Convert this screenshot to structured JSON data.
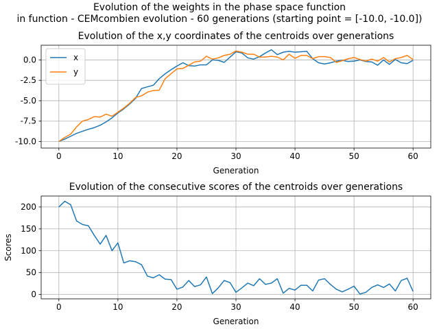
{
  "figure": {
    "title_line1": "Evolution of the weights in the phase space  function",
    "title_line2": "in function - CEMcombien evolution - 60 generations (starting point = [-10.0, -10.0])"
  },
  "chart_data": [
    {
      "type": "line",
      "title": "Evolution of the x,y coordinates of the centroids over generations",
      "xlabel": "Generation",
      "ylabel": "",
      "xlim": [
        -3,
        63
      ],
      "ylim": [
        -10.8,
        1.8
      ],
      "xticks": [
        0,
        10,
        20,
        30,
        40,
        50,
        60
      ],
      "yticks": [
        -10.0,
        -7.5,
        -5.0,
        -2.5,
        0.0,
        2.5
      ],
      "grid": true,
      "legend": "top-left",
      "x": [
        0,
        1,
        2,
        3,
        4,
        5,
        6,
        7,
        8,
        9,
        10,
        11,
        12,
        13,
        14,
        15,
        16,
        17,
        18,
        19,
        20,
        21,
        22,
        23,
        24,
        25,
        26,
        27,
        28,
        29,
        30,
        31,
        32,
        33,
        34,
        35,
        36,
        37,
        38,
        39,
        40,
        41,
        42,
        43,
        44,
        45,
        46,
        47,
        48,
        49,
        50,
        51,
        52,
        53,
        54,
        55,
        56,
        57,
        58,
        59,
        60
      ],
      "series": [
        {
          "name": "x",
          "color": "#1f77b4",
          "values": [
            -10.0,
            -9.7,
            -9.35,
            -9.0,
            -8.75,
            -8.5,
            -8.3,
            -8.0,
            -7.6,
            -7.1,
            -6.5,
            -6.0,
            -5.4,
            -4.7,
            -3.5,
            -3.3,
            -3.1,
            -2.3,
            -1.7,
            -1.2,
            -0.75,
            -0.35,
            -0.7,
            -0.75,
            -0.6,
            -0.6,
            0.0,
            -0.05,
            -0.3,
            0.35,
            1.0,
            0.85,
            0.25,
            0.1,
            0.4,
            0.85,
            1.25,
            0.65,
            0.95,
            1.05,
            0.95,
            1.0,
            1.05,
            0.15,
            -0.35,
            -0.5,
            -0.35,
            -0.15,
            -0.05,
            -0.2,
            -0.15,
            0.0,
            -0.2,
            -0.25,
            -0.65,
            0.0,
            -0.55,
            0.05,
            -0.35,
            -0.45,
            -0.05
          ]
        },
        {
          "name": "y",
          "color": "#ff7f0e",
          "values": [
            -10.0,
            -9.5,
            -9.1,
            -8.2,
            -7.5,
            -7.3,
            -6.95,
            -7.0,
            -6.65,
            -6.9,
            -6.4,
            -5.9,
            -5.3,
            -4.6,
            -4.4,
            -3.95,
            -3.75,
            -3.7,
            -2.3,
            -1.7,
            -1.1,
            -1.05,
            -0.65,
            -0.25,
            -0.15,
            0.45,
            0.1,
            0.25,
            0.55,
            0.7,
            1.1,
            0.95,
            0.7,
            0.7,
            0.35,
            0.35,
            0.45,
            0.35,
            0.0,
            0.7,
            0.2,
            0.55,
            0.55,
            0.15,
            0.4,
            0.4,
            0.3,
            -0.3,
            -0.1,
            0.15,
            0.3,
            0.05,
            -0.15,
            0.1,
            -0.15,
            0.3,
            -0.25,
            0.15,
            0.3,
            0.55,
            0.05
          ]
        }
      ]
    },
    {
      "type": "line",
      "title": "Evolution of the consecutive scores of the centroids over generations",
      "xlabel": "Generation",
      "ylabel": "Scores",
      "xlim": [
        -3,
        63
      ],
      "ylim": [
        -10,
        225
      ],
      "xticks": [
        0,
        10,
        20,
        30,
        40,
        50,
        60
      ],
      "yticks": [
        0,
        50,
        100,
        150,
        200
      ],
      "grid": true,
      "x": [
        0,
        1,
        2,
        3,
        4,
        5,
        6,
        7,
        8,
        9,
        10,
        11,
        12,
        13,
        14,
        15,
        16,
        17,
        18,
        19,
        20,
        21,
        22,
        23,
        24,
        25,
        26,
        27,
        28,
        29,
        30,
        31,
        32,
        33,
        34,
        35,
        36,
        37,
        38,
        39,
        40,
        41,
        42,
        43,
        44,
        45,
        46,
        47,
        48,
        49,
        50,
        51,
        52,
        53,
        54,
        55,
        56,
        57,
        58,
        59,
        60
      ],
      "series": [
        {
          "color": "#1f77b4",
          "values": [
            200,
            213,
            205,
            168,
            160,
            157,
            135,
            115,
            135,
            100,
            118,
            72,
            77,
            75,
            68,
            42,
            38,
            45,
            35,
            34,
            12,
            17,
            32,
            18,
            22,
            40,
            2,
            15,
            32,
            27,
            5,
            15,
            26,
            20,
            36,
            23,
            26,
            36,
            3,
            14,
            10,
            21,
            21,
            8,
            33,
            36,
            23,
            12,
            6,
            12,
            19,
            1,
            5,
            16,
            22,
            16,
            24,
            8,
            32,
            37,
            7
          ]
        }
      ]
    }
  ]
}
